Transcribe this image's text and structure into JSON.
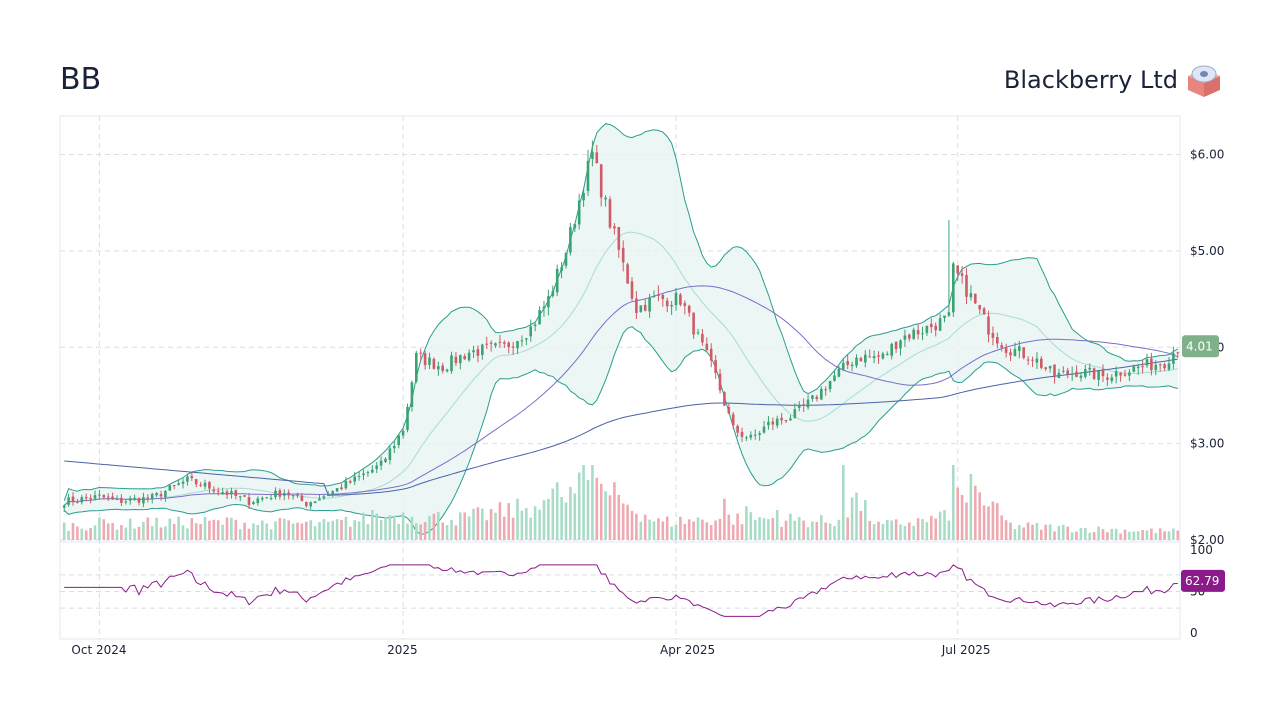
{
  "header": {
    "ticker": "BB",
    "company": "Blackberry Ltd",
    "logo_icon": "cube-logo-icon"
  },
  "colors": {
    "up": "#26a69a",
    "up_candle": "#3aa371",
    "down": "#d05a66",
    "band_line": "#2a9d8f",
    "band_fill": "#e6f4f2",
    "band_mid": "#a8dcd4",
    "sma50": "#7b6fc8",
    "sma200": "#4a63a8",
    "rsi": "#8b1a8b",
    "last_price_badge": "#7fb08a",
    "rsi_badge": "#8b1a8b"
  },
  "chart_data": {
    "type": "candlestick",
    "price_axis": {
      "range": [
        2.0,
        6.4
      ],
      "ticks": [
        "$6.00",
        "$5.00",
        "$4.00",
        "$3.00",
        "$2.00"
      ],
      "tick_values": [
        6,
        5,
        4,
        3,
        2
      ]
    },
    "x_axis": {
      "labels": [
        "Oct 2024",
        "2025",
        "Apr 2025",
        "Jul 2025"
      ],
      "label_indices": [
        8,
        77,
        139,
        203
      ]
    },
    "last_price": "4.01",
    "rsi_axis": {
      "range": [
        0,
        100
      ],
      "ticks": [
        "100",
        "50",
        "0"
      ],
      "tick_values": [
        100,
        50,
        0
      ],
      "bands": [
        70,
        50,
        30
      ]
    },
    "rsi_last": "62.79",
    "anchors": {
      "close": [
        [
          0,
          2.4
        ],
        [
          8,
          2.45
        ],
        [
          12,
          2.4
        ],
        [
          20,
          2.44
        ],
        [
          28,
          2.62
        ],
        [
          35,
          2.52
        ],
        [
          42,
          2.4
        ],
        [
          50,
          2.5
        ],
        [
          55,
          2.38
        ],
        [
          60,
          2.48
        ],
        [
          65,
          2.6
        ],
        [
          72,
          2.78
        ],
        [
          77,
          3.15
        ],
        [
          80,
          3.9
        ],
        [
          86,
          3.8
        ],
        [
          92,
          3.95
        ],
        [
          100,
          4.0
        ],
        [
          106,
          4.2
        ],
        [
          110,
          4.5
        ],
        [
          114,
          5.0
        ],
        [
          118,
          5.7
        ],
        [
          120,
          6.0
        ],
        [
          124,
          5.3
        ],
        [
          128,
          4.7
        ],
        [
          130,
          4.4
        ],
        [
          134,
          4.5
        ],
        [
          140,
          4.5
        ],
        [
          145,
          4.0
        ],
        [
          148,
          3.7
        ],
        [
          152,
          3.15
        ],
        [
          156,
          3.05
        ],
        [
          160,
          3.2
        ],
        [
          166,
          3.3
        ],
        [
          170,
          3.45
        ],
        [
          175,
          3.7
        ],
        [
          180,
          3.9
        ],
        [
          186,
          3.9
        ],
        [
          190,
          4.1
        ],
        [
          196,
          4.2
        ],
        [
          201,
          4.3
        ],
        [
          202,
          4.8
        ],
        [
          205,
          4.6
        ],
        [
          210,
          4.2
        ],
        [
          214,
          4.0
        ],
        [
          220,
          3.9
        ],
        [
          225,
          3.7
        ],
        [
          230,
          3.75
        ],
        [
          236,
          3.7
        ],
        [
          240,
          3.75
        ],
        [
          245,
          3.8
        ],
        [
          250,
          3.85
        ],
        [
          253,
          4.0
        ]
      ],
      "volume": [
        [
          0,
          0.2
        ],
        [
          30,
          0.25
        ],
        [
          60,
          0.22
        ],
        [
          75,
          0.35
        ],
        [
          90,
          0.3
        ],
        [
          105,
          0.45
        ],
        [
          118,
          0.8
        ],
        [
          125,
          0.6
        ],
        [
          135,
          0.25
        ],
        [
          150,
          0.3
        ],
        [
          160,
          0.3
        ],
        [
          175,
          0.25
        ],
        [
          178,
          0.7
        ],
        [
          185,
          0.2
        ],
        [
          200,
          0.3
        ],
        [
          205,
          0.8
        ],
        [
          215,
          0.2
        ],
        [
          235,
          0.15
        ],
        [
          253,
          0.12
        ]
      ],
      "volume_spikes": [
        [
          8,
          0.3
        ],
        [
          19,
          0.3
        ],
        [
          37,
          0.3
        ],
        [
          48,
          0.25
        ],
        [
          70,
          0.4
        ],
        [
          73,
          0.3
        ],
        [
          107,
          0.45
        ],
        [
          110,
          0.55
        ],
        [
          114,
          0.5
        ],
        [
          116,
          0.62
        ],
        [
          117,
          0.9
        ],
        [
          118,
          1.0
        ],
        [
          119,
          0.8
        ],
        [
          120,
          1.0
        ],
        [
          122,
          0.75
        ],
        [
          123,
          0.65
        ],
        [
          150,
          0.55
        ],
        [
          155,
          0.45
        ],
        [
          162,
          0.4
        ],
        [
          177,
          1.0
        ],
        [
          178,
          0.3
        ],
        [
          200,
          0.4
        ],
        [
          202,
          1.0
        ],
        [
          203,
          0.7
        ],
        [
          204,
          0.6
        ],
        [
          205,
          0.5
        ]
      ]
    },
    "num_sessions": 254
  }
}
